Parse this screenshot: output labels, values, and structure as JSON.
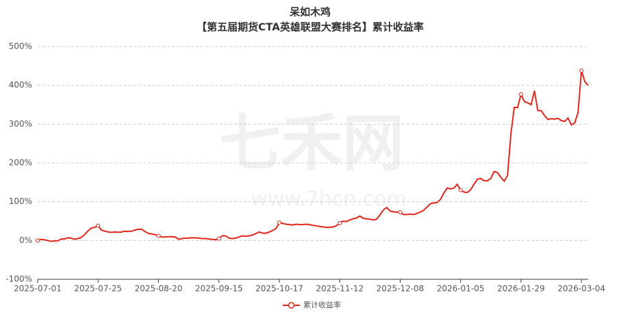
{
  "chart_data": {
    "type": "line",
    "title": "呆如木鸡",
    "subtitle": "【第五届期货CTA英雄联盟大赛排名】累计收益率",
    "watermark": [
      "七禾网",
      "www.7hcn.com"
    ],
    "categories": [
      "2025-07-01",
      null,
      null,
      null,
      null,
      null,
      null,
      null,
      null,
      null,
      null,
      null,
      null,
      null,
      null,
      null,
      null,
      null,
      "2025-07-25",
      null,
      null,
      null,
      null,
      null,
      null,
      null,
      null,
      null,
      null,
      null,
      null,
      null,
      null,
      null,
      null,
      null,
      "2025-08-20",
      null,
      null,
      null,
      null,
      null,
      null,
      null,
      null,
      null,
      null,
      null,
      null,
      null,
      null,
      null,
      null,
      null,
      "2025-09-15",
      null,
      null,
      null,
      null,
      null,
      null,
      null,
      null,
      null,
      null,
      null,
      null,
      null,
      null,
      null,
      null,
      null,
      "2025-10-17",
      null,
      null,
      null,
      null,
      null,
      null,
      null,
      null,
      null,
      null,
      null,
      null,
      null,
      null,
      null,
      null,
      null,
      "2025-11-12",
      null,
      null,
      null,
      null,
      null,
      null,
      null,
      null,
      null,
      null,
      null,
      null,
      null,
      null,
      null,
      null,
      null,
      "2025-12-08",
      null,
      null,
      null,
      null,
      null,
      null,
      null,
      null,
      null,
      null,
      null,
      null,
      null,
      null,
      null,
      null,
      null,
      "2026-01-05",
      null,
      null,
      null,
      null,
      null,
      null,
      null,
      null,
      null,
      null,
      null,
      null,
      null,
      null,
      null,
      null,
      null,
      "2026-01-29",
      null,
      null,
      null,
      null,
      null,
      null,
      null,
      null,
      null,
      null,
      null,
      null,
      null,
      null,
      null,
      null,
      null,
      "2026-03-04",
      null,
      null
    ],
    "series": [
      {
        "name": "累计收益率",
        "color": "#e1251b",
        "values": [
          0,
          3,
          2,
          0,
          -2,
          -1,
          -1,
          4,
          4,
          7,
          6,
          3,
          5,
          8,
          15,
          25,
          32,
          34,
          38,
          27,
          24,
          22,
          21,
          22,
          21,
          22,
          24,
          23,
          24,
          27,
          29,
          29,
          23,
          18,
          17,
          15,
          12,
          9,
          9,
          10,
          10,
          9,
          3,
          5,
          6,
          6,
          7,
          7,
          6,
          5,
          5,
          4,
          3,
          2,
          5,
          12,
          12,
          6,
          5,
          6,
          9,
          12,
          11,
          12,
          14,
          18,
          22,
          19,
          19,
          22,
          26,
          31,
          46,
          44,
          42,
          41,
          40,
          42,
          41,
          41,
          42,
          41,
          39,
          38,
          36,
          35,
          34,
          34,
          35,
          38,
          45,
          50,
          49,
          53,
          56,
          58,
          63,
          57,
          56,
          55,
          53,
          55,
          66,
          79,
          85,
          76,
          74,
          73,
          73,
          67,
          67,
          68,
          67,
          70,
          73,
          78,
          86,
          95,
          97,
          98,
          106,
          122,
          135,
          133,
          135,
          145,
          130,
          125,
          124,
          131,
          145,
          158,
          160,
          154,
          154,
          160,
          178,
          175,
          163,
          153,
          168,
          275,
          343,
          343,
          377,
          358,
          355,
          350,
          386,
          335,
          335,
          322,
          312,
          314,
          313,
          315,
          309,
          307,
          316,
          298,
          303,
          330,
          438,
          410,
          400
        ]
      }
    ],
    "ylim": [
      -100,
      500
    ],
    "yticks": [
      {
        "value": -100,
        "label": "-100%"
      },
      {
        "value": 0,
        "label": "0%"
      },
      {
        "value": 100,
        "label": "100%"
      },
      {
        "value": 200,
        "label": "200%"
      },
      {
        "value": 300,
        "label": "300%"
      },
      {
        "value": 400,
        "label": "400%"
      },
      {
        "value": 500,
        "label": "500%"
      }
    ],
    "grid": true,
    "legend": "bottom"
  }
}
